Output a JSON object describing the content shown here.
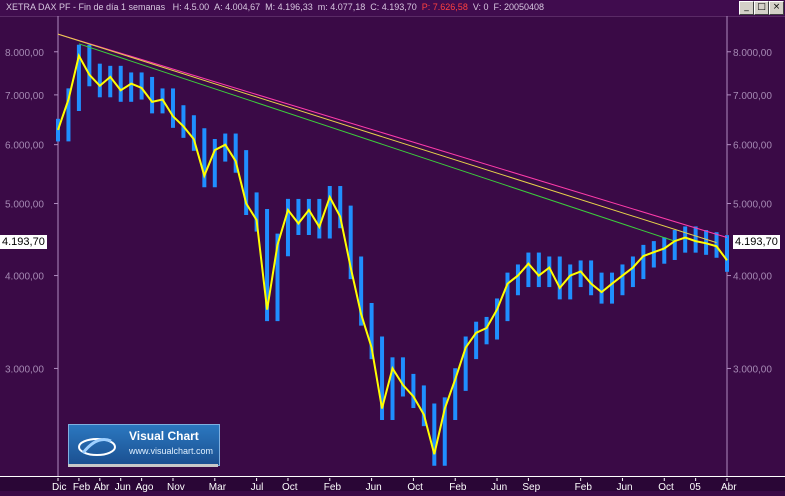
{
  "window": {
    "title": "XETRA DAX PF - Fin de día 1 semanas",
    "stats": [
      {
        "k": "H",
        "v": "4.5.00"
      },
      {
        "k": "A",
        "v": "4.004,67"
      },
      {
        "k": "M",
        "v": "4.196,33"
      },
      {
        "k": "m",
        "v": "4.077,18"
      },
      {
        "k": "C",
        "v": "4.193,70"
      },
      {
        "k": "P",
        "v": "7.626,58"
      },
      {
        "k": "V",
        "v": "0"
      },
      {
        "k": "F",
        "v": "20050408"
      }
    ],
    "buttons": {
      "minimize": "_",
      "maximize": "□",
      "close": "×"
    }
  },
  "logo": {
    "name": "Visual Chart",
    "url": "www.visualchart.com"
  },
  "colors": {
    "background": "#3a0a46",
    "price_line": "#ffff00",
    "bars": "#1f8fff",
    "trend_pink": "#ff3caa",
    "trend_yellow": "#e6d24a",
    "trend_green": "#3ccc3c"
  },
  "chart_data": {
    "type": "line",
    "scale": "log",
    "last_value": "4.193,70",
    "y_ticks": [
      "8.000,00",
      "7.000,00",
      "6.000,00",
      "5.000,00",
      "4.000,00",
      "3.000,00"
    ],
    "y_tick_values": [
      8000,
      7000,
      6000,
      5000,
      4000,
      3000
    ],
    "ylim": [
      2150,
      8800
    ],
    "x_labels": [
      "Dic",
      "Feb",
      "Abr",
      "Jun",
      "Ago",
      "Nov",
      "Mar",
      "Jul",
      "Oct",
      "Feb",
      "Jun",
      "Oct",
      "Feb",
      "Jun",
      "Sep",
      "Feb",
      "Jun",
      "Oct",
      "05",
      "Abr"
    ],
    "x_label_dates": [
      "2000-12",
      "2001-02",
      "2001-04",
      "2001-06",
      "2001-08",
      "2001-11",
      "2002-03",
      "2002-07",
      "2002-10",
      "2003-02",
      "2003-06",
      "2003-10",
      "2004-02",
      "2004-06",
      "2004-09",
      "2005-02",
      "2005-06",
      "2005-10",
      "2006-01",
      "2006-04"
    ],
    "series": [
      {
        "values": [
          [
            "2000-12",
            6280
          ],
          [
            "2001-01",
            6900
          ],
          [
            "2001-02",
            7900
          ],
          [
            "2001-03",
            7450
          ],
          [
            "2001-04",
            7200
          ],
          [
            "2001-05",
            7400
          ],
          [
            "2001-06",
            7100
          ],
          [
            "2001-07",
            7250
          ],
          [
            "2001-08",
            7150
          ],
          [
            "2001-09",
            6850
          ],
          [
            "2001-10",
            6900
          ],
          [
            "2001-11",
            6550
          ],
          [
            "2001-12",
            6350
          ],
          [
            "2002-01",
            6100
          ],
          [
            "2002-02",
            5450
          ],
          [
            "2002-03",
            5900
          ],
          [
            "2002-04",
            6000
          ],
          [
            "2002-05",
            5700
          ],
          [
            "2002-06",
            5000
          ],
          [
            "2002-07",
            4750
          ],
          [
            "2002-08",
            3600
          ],
          [
            "2002-09",
            4400
          ],
          [
            "2002-10",
            4900
          ],
          [
            "2002-11",
            4700
          ],
          [
            "2002-12",
            4900
          ],
          [
            "2003-01",
            4650
          ],
          [
            "2003-02",
            5100
          ],
          [
            "2003-03",
            4800
          ],
          [
            "2003-04",
            4100
          ],
          [
            "2003-05",
            3550
          ],
          [
            "2003-06",
            3200
          ],
          [
            "2003-07",
            2650
          ],
          [
            "2003-08",
            3000
          ],
          [
            "2003-09",
            2850
          ],
          [
            "2003-10",
            2750
          ],
          [
            "2003-11",
            2600
          ],
          [
            "2003-12",
            2300
          ],
          [
            "2004-01",
            2650
          ],
          [
            "2004-02",
            2900
          ],
          [
            "2004-03",
            3200
          ],
          [
            "2004-04",
            3350
          ],
          [
            "2004-05",
            3400
          ],
          [
            "2004-06",
            3600
          ],
          [
            "2004-07",
            3900
          ],
          [
            "2004-08",
            4000
          ],
          [
            "2004-09",
            4150
          ],
          [
            "2004-10",
            4000
          ],
          [
            "2004-11",
            4100
          ],
          [
            "2004-12",
            3850
          ],
          [
            "2005-01",
            4000
          ],
          [
            "2005-02",
            4050
          ],
          [
            "2005-03",
            3900
          ],
          [
            "2005-04",
            3800
          ],
          [
            "2005-05",
            3900
          ],
          [
            "2005-06",
            4000
          ],
          [
            "2005-07",
            4100
          ],
          [
            "2005-08",
            4250
          ],
          [
            "2005-09",
            4300
          ],
          [
            "2005-10",
            4350
          ],
          [
            "2005-11",
            4450
          ],
          [
            "2005-12",
            4500
          ],
          [
            "2006-01",
            4450
          ],
          [
            "2006-02",
            4420
          ],
          [
            "2006-03",
            4380
          ],
          [
            "2006-04",
            4193.7
          ]
        ]
      }
    ],
    "trendlines": [
      {
        "color": "pink",
        "from": [
          "2000-12",
          8450
        ],
        "to": [
          "2006-04",
          4500
        ]
      },
      {
        "color": "yellow",
        "from": [
          "2000-12",
          8450
        ],
        "to": [
          "2006-03",
          4430
        ]
      },
      {
        "color": "green",
        "from": [
          "2001-02",
          8200
        ],
        "to": [
          "2005-11",
          4450
        ]
      }
    ]
  }
}
